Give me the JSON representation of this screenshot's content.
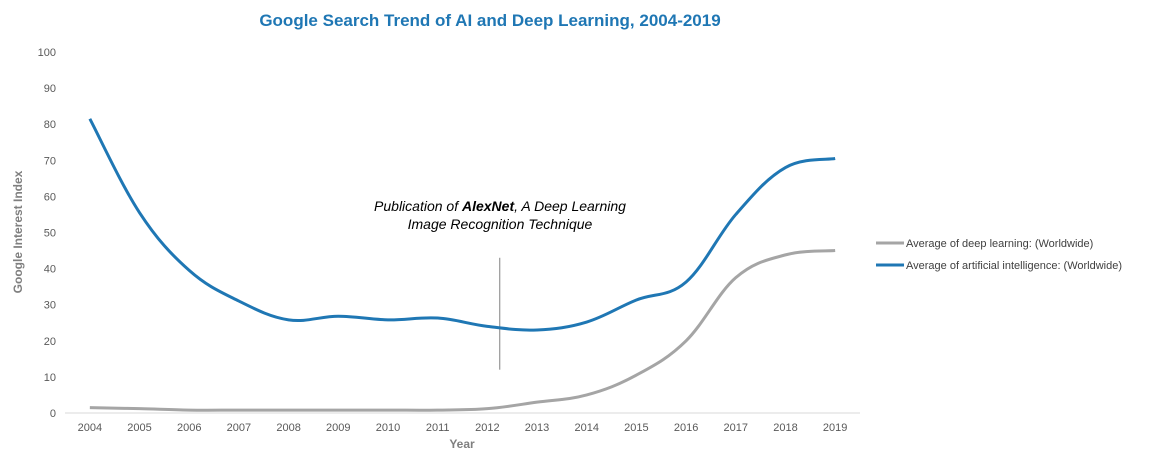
{
  "chart_data": {
    "type": "line",
    "title": "Google Search Trend of AI and Deep Learning, 2004-2019",
    "xlabel": "Year",
    "ylabel": "Google Interest Index",
    "ylim": [
      0,
      100
    ],
    "yticks": [
      0,
      10,
      20,
      30,
      40,
      50,
      60,
      70,
      80,
      90,
      100
    ],
    "categories": [
      "2004",
      "2005",
      "2006",
      "2007",
      "2008",
      "2009",
      "2010",
      "2011",
      "2012",
      "2013",
      "2014",
      "2015",
      "2016",
      "2017",
      "2018",
      "2019"
    ],
    "series": [
      {
        "name": "Average of deep learning: (Worldwide)",
        "color": "#a5a5a5",
        "values": [
          1.5,
          1.2,
          0.8,
          0.8,
          0.8,
          0.8,
          0.8,
          0.8,
          1.2,
          3,
          5,
          10.5,
          20,
          37.5,
          43.8,
          45
        ]
      },
      {
        "name": "Average of artificial intelligence: (Worldwide)",
        "color": "#1f77b4",
        "values": [
          81.5,
          55.5,
          39.5,
          31,
          25.8,
          26.8,
          25.8,
          26.3,
          24,
          23,
          25.2,
          31.3,
          36.3,
          55,
          68,
          70.5
        ]
      }
    ],
    "annotation": {
      "text_prefix": "Publication of ",
      "text_bold": "AlexNet",
      "text_suffix": ", A Deep Learning",
      "line2": "Image Recognition Technique",
      "marker_x": 2012.25,
      "marker_y_from": 12,
      "marker_y_to": 43
    },
    "legend_position": "right",
    "grid": false,
    "title_color": "#1f77b4"
  }
}
